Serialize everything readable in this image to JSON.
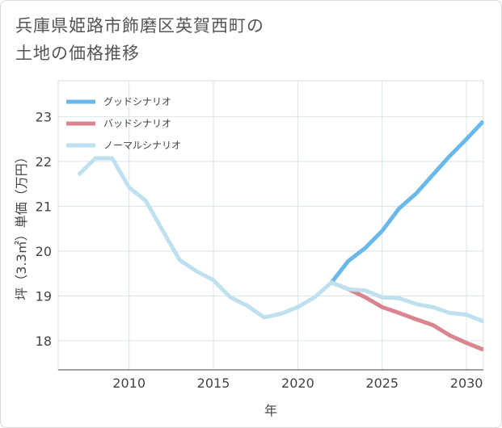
{
  "title_lines": [
    "兵庫県姫路市飾磨区英賀西町の",
    "土地の価格推移"
  ],
  "chart_data": {
    "type": "line",
    "xlabel": "年",
    "ylabel": "坪（3.3㎡）単価（万円）",
    "xlim": [
      2005.8,
      2031
    ],
    "ylim": [
      17.35,
      23.8
    ],
    "x_ticks": [
      2010,
      2015,
      2020,
      2025,
      2030
    ],
    "y_ticks": [
      18,
      19,
      20,
      21,
      22,
      23
    ],
    "grid": true,
    "legend_position": "top-left",
    "series": [
      {
        "name": "グッドシナリオ",
        "color": "#6bb9ea",
        "x": [
          2022,
          2023,
          2024,
          2025,
          2026,
          2027,
          2028,
          2029,
          2030,
          2031
        ],
        "y": [
          19.3,
          19.78,
          20.07,
          20.45,
          20.95,
          21.28,
          21.7,
          22.12,
          22.5,
          22.9
        ]
      },
      {
        "name": "バッドシナリオ",
        "color": "#d9848e",
        "x": [
          2022,
          2023,
          2024,
          2025,
          2026,
          2027,
          2028,
          2029,
          2030,
          2031
        ],
        "y": [
          19.3,
          19.15,
          18.97,
          18.75,
          18.62,
          18.48,
          18.35,
          18.12,
          17.95,
          17.8
        ]
      },
      {
        "name": "ノーマルシナリオ",
        "color": "#bfe0ee",
        "x": [
          2007,
          2008,
          2009,
          2010,
          2011,
          2012,
          2013,
          2014,
          2015,
          2016,
          2017,
          2018,
          2019,
          2020,
          2021,
          2022,
          2023,
          2024,
          2025,
          2026,
          2027,
          2028,
          2029,
          2030,
          2031
        ],
        "y": [
          21.7,
          22.07,
          22.07,
          21.42,
          21.12,
          20.45,
          19.8,
          19.55,
          19.35,
          18.97,
          18.78,
          18.52,
          18.6,
          18.75,
          18.97,
          19.3,
          19.15,
          19.12,
          18.97,
          18.95,
          18.82,
          18.75,
          18.62,
          18.58,
          18.43
        ]
      }
    ]
  }
}
